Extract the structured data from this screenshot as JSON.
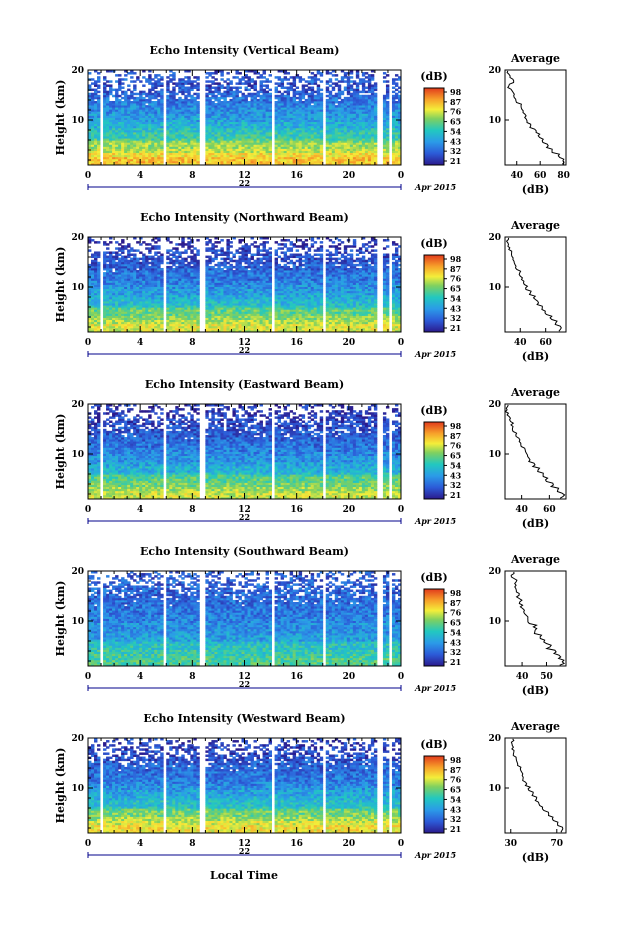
{
  "date_label": "Apr 2015",
  "unit_label": "(dB)",
  "colorbar_ticks": [
    "98",
    "87",
    "76",
    "65",
    "54",
    "43",
    "32",
    "21"
  ],
  "colors": {
    "bg": "#ffffff",
    "axis": "#000000",
    "time_axis": "#00008b"
  },
  "x_label_bottom": "Local Time",
  "chart_data": [
    {
      "type": "heatmap",
      "title": "Echo Intensity (Vertical Beam)",
      "ylabel": "Height (km)",
      "x_ticks": [
        "0",
        "4",
        "8",
        "12",
        "16",
        "20",
        "0"
      ],
      "day_label": "22",
      "y_ticks": [
        "20",
        "10"
      ],
      "ylim": [
        1,
        20
      ],
      "xlim": [
        0,
        24
      ],
      "data_gaps_hours": [
        [
          0.85,
          1.15
        ],
        [
          5.85,
          6.1
        ],
        [
          8.6,
          9.1
        ],
        [
          14.1,
          14.4
        ],
        [
          18.0,
          18.2
        ],
        [
          22.2,
          22.5
        ],
        [
          23.1,
          23.2
        ]
      ],
      "colorbar": {
        "min": 21,
        "max": 98
      },
      "profile": {
        "title": "Average",
        "xlabel": "(dB)",
        "x_ticks": [
          "40",
          "60",
          "80"
        ],
        "xlim": [
          30,
          82
        ],
        "y_ticks": [
          "20",
          "10"
        ],
        "heights_km": [
          1,
          2,
          3,
          4,
          5,
          6,
          7,
          8,
          9,
          10,
          11,
          12,
          13,
          14,
          15,
          16,
          17,
          18,
          19,
          20
        ],
        "values_db": [
          78,
          80,
          76,
          70,
          66,
          62,
          59,
          56,
          52,
          49,
          47,
          45,
          43,
          40,
          38,
          36,
          33,
          37,
          34,
          32
        ]
      }
    },
    {
      "type": "heatmap",
      "title": "Echo Intensity (Northward Beam)",
      "ylabel": "Height (km)",
      "x_ticks": [
        "0",
        "4",
        "8",
        "12",
        "16",
        "20",
        "0"
      ],
      "day_label": "22",
      "y_ticks": [
        "20",
        "10"
      ],
      "ylim": [
        1,
        20
      ],
      "xlim": [
        0,
        24
      ],
      "data_gaps_hours": [
        [
          0.85,
          1.15
        ],
        [
          5.85,
          6.1
        ],
        [
          8.6,
          9.1
        ],
        [
          14.1,
          14.4
        ],
        [
          18.0,
          18.2
        ],
        [
          22.2,
          22.5
        ],
        [
          23.1,
          23.2
        ]
      ],
      "colorbar": {
        "min": 21,
        "max": 98
      },
      "profile": {
        "title": "Average",
        "xlabel": "(dB)",
        "x_ticks": [
          "40",
          "60"
        ],
        "xlim": [
          28,
          76
        ],
        "y_ticks": [
          "20",
          "10"
        ],
        "heights_km": [
          1,
          2,
          3,
          4,
          5,
          6,
          7,
          8,
          9,
          10,
          11,
          12,
          13,
          14,
          15,
          16,
          17,
          18,
          19,
          20
        ],
        "values_db": [
          70,
          72,
          68,
          64,
          60,
          57,
          54,
          51,
          48,
          45,
          43,
          41,
          40,
          37,
          35,
          34,
          33,
          31,
          30,
          31
        ]
      }
    },
    {
      "type": "heatmap",
      "title": "Echo Intensity (Eastward Beam)",
      "ylabel": "Height (km)",
      "x_ticks": [
        "0",
        "4",
        "8",
        "12",
        "16",
        "20",
        "0"
      ],
      "day_label": "22",
      "y_ticks": [
        "20",
        "10"
      ],
      "ylim": [
        1,
        20
      ],
      "xlim": [
        0,
        24
      ],
      "data_gaps_hours": [
        [
          0.85,
          1.15
        ],
        [
          5.85,
          6.1
        ],
        [
          8.6,
          9.1
        ],
        [
          14.1,
          14.4
        ],
        [
          18.0,
          18.2
        ],
        [
          22.2,
          22.5
        ],
        [
          23.1,
          23.2
        ]
      ],
      "colorbar": {
        "min": 21,
        "max": 98
      },
      "profile": {
        "title": "Average",
        "xlabel": "(dB)",
        "x_ticks": [
          "40",
          "60"
        ],
        "xlim": [
          28,
          72
        ],
        "y_ticks": [
          "20",
          "10"
        ],
        "heights_km": [
          1,
          2,
          3,
          4,
          5,
          6,
          7,
          8,
          9,
          10,
          11,
          12,
          13,
          14,
          15,
          16,
          17,
          18,
          19,
          20
        ],
        "values_db": [
          68,
          70,
          66,
          62,
          58,
          55,
          52,
          49,
          46,
          44,
          42,
          40,
          38,
          36,
          34,
          33,
          32,
          30,
          29,
          30
        ]
      }
    },
    {
      "type": "heatmap",
      "title": "Echo Intensity (Southward Beam)",
      "ylabel": "Height (km)",
      "x_ticks": [
        "0",
        "4",
        "8",
        "12",
        "16",
        "20",
        "0"
      ],
      "day_label": "22",
      "y_ticks": [
        "20",
        "10"
      ],
      "ylim": [
        1,
        20
      ],
      "xlim": [
        0,
        24
      ],
      "data_gaps_hours": [
        [
          0.85,
          1.15
        ],
        [
          5.85,
          6.1
        ],
        [
          8.6,
          9.1
        ],
        [
          14.1,
          14.4
        ],
        [
          18.0,
          18.2
        ],
        [
          22.2,
          22.5
        ],
        [
          23.1,
          23.2
        ]
      ],
      "colorbar": {
        "min": 21,
        "max": 98
      },
      "profile": {
        "title": "Average",
        "xlabel": "(dB)",
        "x_ticks": [
          "40",
          "50"
        ],
        "xlim": [
          33,
          58
        ],
        "y_ticks": [
          "20",
          "10"
        ],
        "heights_km": [
          1,
          2,
          3,
          4,
          5,
          6,
          7,
          8,
          9,
          10,
          11,
          12,
          13,
          14,
          15,
          16,
          17,
          18,
          19,
          20
        ],
        "values_db": [
          56,
          57,
          55,
          53,
          51,
          49,
          48,
          46,
          45,
          43,
          42,
          41,
          40,
          39,
          38,
          38,
          37,
          37,
          36,
          37
        ]
      }
    },
    {
      "type": "heatmap",
      "title": "Echo Intensity (Westward Beam)",
      "ylabel": "Height (km)",
      "x_ticks": [
        "0",
        "4",
        "8",
        "12",
        "16",
        "20",
        "0"
      ],
      "day_label": "22",
      "y_ticks": [
        "20",
        "10"
      ],
      "ylim": [
        1,
        20
      ],
      "xlim": [
        0,
        24
      ],
      "data_gaps_hours": [
        [
          0.85,
          1.15
        ],
        [
          5.85,
          6.1
        ],
        [
          8.6,
          9.1
        ],
        [
          14.1,
          14.4
        ],
        [
          18.0,
          18.2
        ],
        [
          22.2,
          22.5
        ],
        [
          23.1,
          23.2
        ]
      ],
      "colorbar": {
        "min": 21,
        "max": 98
      },
      "profile": {
        "title": "Average",
        "xlabel": "(dB)",
        "x_ticks": [
          "30",
          "70"
        ],
        "xlim": [
          25,
          78
        ],
        "y_ticks": [
          "20",
          "10"
        ],
        "heights_km": [
          1,
          2,
          3,
          4,
          5,
          6,
          7,
          8,
          9,
          10,
          11,
          12,
          13,
          14,
          15,
          16,
          17,
          18,
          19,
          20
        ],
        "values_db": [
          74,
          75,
          71,
          66,
          62,
          58,
          55,
          52,
          49,
          46,
          43,
          41,
          40,
          38,
          36,
          34,
          33,
          32,
          31,
          32
        ]
      }
    }
  ]
}
